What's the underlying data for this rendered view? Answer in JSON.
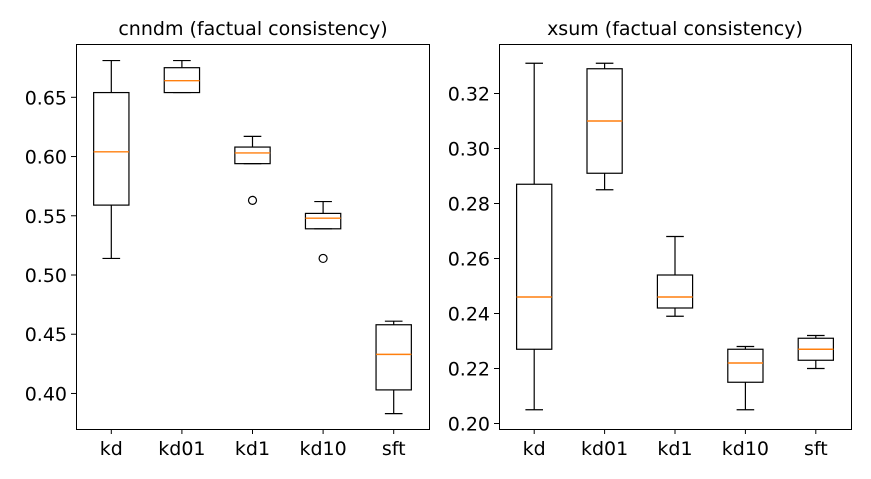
{
  "chart_data": [
    {
      "type": "box",
      "title": "cnndm (factual consistency)",
      "categories": [
        "kd",
        "kd01",
        "kd1",
        "kd10",
        "sft"
      ],
      "ylim": [
        0.37,
        0.695
      ],
      "yticks": [
        0.4,
        0.45,
        0.5,
        0.55,
        0.6,
        0.65
      ],
      "ytick_labels": [
        "0.40",
        "0.45",
        "0.50",
        "0.55",
        "0.60",
        "0.65"
      ],
      "boxes": [
        {
          "whislo": 0.514,
          "q1": 0.559,
          "med": 0.604,
          "q3": 0.654,
          "whishi": 0.681,
          "fliers": []
        },
        {
          "whislo": 0.654,
          "q1": 0.654,
          "med": 0.664,
          "q3": 0.675,
          "whishi": 0.681,
          "fliers": []
        },
        {
          "whislo": 0.594,
          "q1": 0.594,
          "med": 0.603,
          "q3": 0.608,
          "whishi": 0.617,
          "fliers": [
            0.563
          ]
        },
        {
          "whislo": 0.539,
          "q1": 0.539,
          "med": 0.548,
          "q3": 0.552,
          "whishi": 0.562,
          "fliers": [
            0.514
          ]
        },
        {
          "whislo": 0.383,
          "q1": 0.403,
          "med": 0.433,
          "q3": 0.458,
          "whishi": 0.461,
          "fliers": []
        }
      ],
      "colors": {
        "box": "#000000",
        "median": "#ff7f0e"
      }
    },
    {
      "type": "box",
      "title": "xsum (factual consistency)",
      "categories": [
        "kd",
        "kd01",
        "kd1",
        "kd10",
        "sft"
      ],
      "ylim": [
        0.198,
        0.338
      ],
      "yticks": [
        0.2,
        0.22,
        0.24,
        0.26,
        0.28,
        0.3,
        0.32
      ],
      "ytick_labels": [
        "0.20",
        "0.22",
        "0.24",
        "0.26",
        "0.28",
        "0.30",
        "0.32"
      ],
      "boxes": [
        {
          "whislo": 0.205,
          "q1": 0.227,
          "med": 0.246,
          "q3": 0.287,
          "whishi": 0.331,
          "fliers": []
        },
        {
          "whislo": 0.285,
          "q1": 0.291,
          "med": 0.31,
          "q3": 0.329,
          "whishi": 0.331,
          "fliers": []
        },
        {
          "whislo": 0.239,
          "q1": 0.242,
          "med": 0.246,
          "q3": 0.254,
          "whishi": 0.268,
          "fliers": []
        },
        {
          "whislo": 0.205,
          "q1": 0.215,
          "med": 0.222,
          "q3": 0.227,
          "whishi": 0.228,
          "fliers": []
        },
        {
          "whislo": 0.22,
          "q1": 0.223,
          "med": 0.227,
          "q3": 0.231,
          "whishi": 0.232,
          "fliers": []
        }
      ],
      "colors": {
        "box": "#000000",
        "median": "#ff7f0e"
      }
    }
  ]
}
